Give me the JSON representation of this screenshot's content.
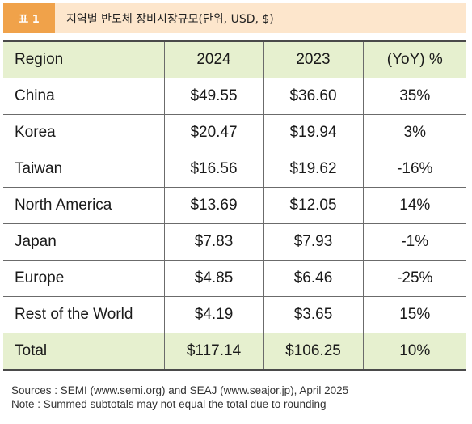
{
  "caption": {
    "badge": "표 1",
    "title": "지역별 반도체 장비시장규모(단위, USD, $)"
  },
  "table": {
    "headers": [
      "Region",
      "2024",
      "2023",
      "(YoY) %"
    ],
    "rows": [
      [
        "China",
        "$49.55",
        "$36.60",
        "35%"
      ],
      [
        "Korea",
        "$20.47",
        "$19.94",
        "3%"
      ],
      [
        "Taiwan",
        "$16.56",
        "$19.62",
        "-16%"
      ],
      [
        "North America",
        "$13.69",
        "$12.05",
        "14%"
      ],
      [
        "Japan",
        "$7.83",
        "$7.93",
        "-1%"
      ],
      [
        "Europe",
        "$4.85",
        "$6.46",
        "-25%"
      ],
      [
        "Rest of the World",
        "$4.19",
        "$3.65",
        "15%"
      ]
    ],
    "total": [
      "Total",
      "$117.14",
      "$106.25",
      "10%"
    ]
  },
  "notes": {
    "sources": "Sources : SEMI (www.semi.org) and SEAJ (www.seajor.jp), April 2025",
    "note": "Note : Summed subtotals may not equal the total due to rounding"
  },
  "colors": {
    "badge": "#f0a24a",
    "caption_background": "#fde6cc",
    "header_background": "#e6f0cf"
  }
}
